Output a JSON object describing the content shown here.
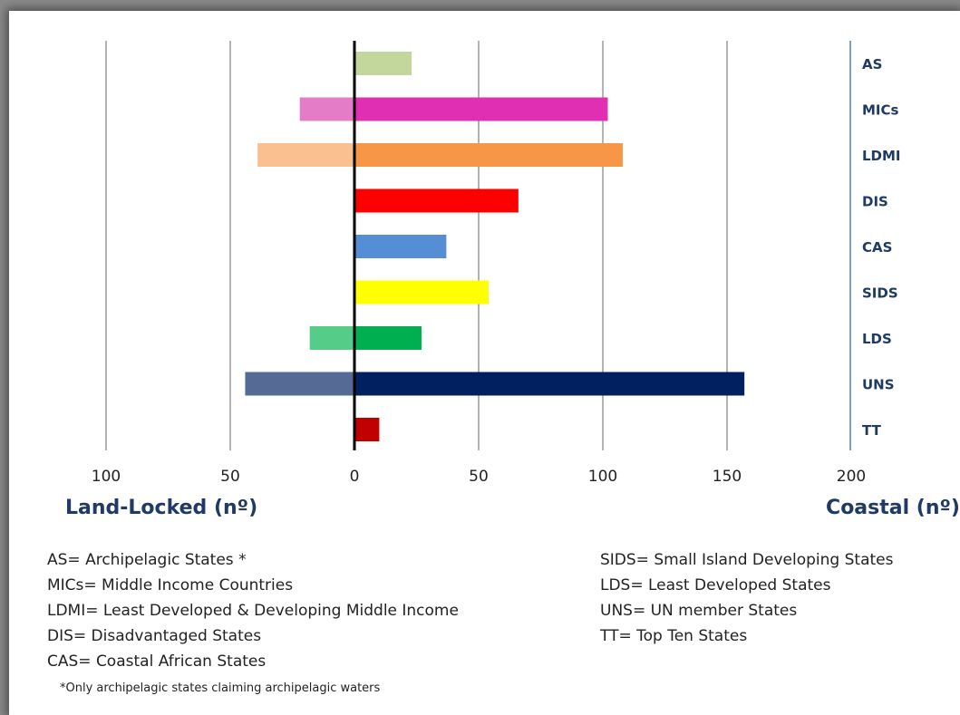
{
  "chart_data": {
    "type": "bar",
    "orientation": "horizontal",
    "categories": [
      "AS",
      "MICs",
      "LDMI",
      "DIS",
      "CAS",
      "SIDS",
      "LDS",
      "UNS",
      "TT"
    ],
    "series": [
      {
        "name": "Coastal (nº)",
        "values": [
          23,
          102,
          108,
          66,
          37,
          54,
          27,
          157,
          10
        ]
      },
      {
        "name": "Land-Locked (nº)",
        "values": [
          0,
          22,
          39,
          0,
          0,
          0,
          18,
          44,
          0
        ]
      }
    ],
    "colors": {
      "coastal": [
        "#c3d69b",
        "#e02fb3",
        "#f79646",
        "#ff0000",
        "#558ed5",
        "#ffff00",
        "#00b050",
        "#002060",
        "#c00000"
      ],
      "landlocked": [
        "#c3d69b",
        "#e57cc8",
        "#fac090",
        "#ff0000",
        "#558ed5",
        "#ffff00",
        "#55cc88",
        "#556a94",
        "#c00000"
      ]
    },
    "x_ticks": [
      "100",
      "50",
      "0",
      "50",
      "100",
      "150",
      "200"
    ],
    "xlim": [
      -100,
      200
    ],
    "grid": true,
    "x_left_label": "Land-Locked (nº)",
    "x_right_label": "Coastal (nº)"
  },
  "legend_left": [
    "AS= Archipelagic States *",
    "MICs= Middle Income Countries",
    "LDMI= Least Developed & Developing Middle Income",
    "DIS= Disadvantaged States",
    "CAS= Coastal African States"
  ],
  "legend_right": [
    "SIDS= Small Island Developing States",
    "LDS= Least Developed States",
    "UNS= UN member States",
    "TT= Top Ten States"
  ],
  "footnote": "*Only archipelagic states claiming archipelagic waters"
}
